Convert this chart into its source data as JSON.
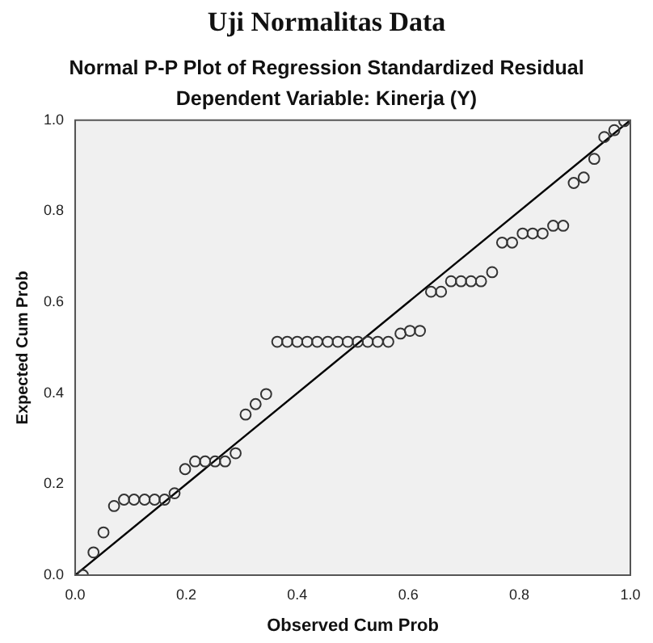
{
  "chart_data": {
    "type": "scatter",
    "title": "Uji Normalitas Data",
    "subtitle": "Normal P-P Plot of Regression Standardized Residual",
    "annotations": [
      "Dependent Variable: Kinerja (Y)"
    ],
    "xlabel": "Observed Cum Prob",
    "ylabel": "Expected Cum Prob",
    "xlim": [
      0,
      1
    ],
    "ylim": [
      0,
      1
    ],
    "xticks": [
      {
        "value": 0,
        "label": "0.0"
      },
      {
        "value": 0.2,
        "label": "0.2"
      },
      {
        "value": 0.4,
        "label": "0.4"
      },
      {
        "value": 0.6,
        "label": "0.6"
      },
      {
        "value": 0.8,
        "label": "0.8"
      },
      {
        "value": 1,
        "label": "1.0"
      }
    ],
    "yticks": [
      {
        "value": 0,
        "label": "0.0"
      },
      {
        "value": 0.2,
        "label": "0.2"
      },
      {
        "value": 0.4,
        "label": "0.4"
      },
      {
        "value": 0.6,
        "label": "0.6"
      },
      {
        "value": 0.8,
        "label": "0.8"
      },
      {
        "value": 1,
        "label": "1.0"
      }
    ],
    "grid": false,
    "legend": false,
    "series": [
      {
        "marker": "circle",
        "color": "#333333",
        "x": [
          0.014,
          0.033,
          0.051,
          0.07,
          0.088,
          0.106,
          0.125,
          0.143,
          0.161,
          0.179,
          0.198,
          0.216,
          0.234,
          0.252,
          0.27,
          0.289,
          0.307,
          0.325,
          0.344,
          0.364,
          0.382,
          0.4,
          0.418,
          0.436,
          0.455,
          0.473,
          0.491,
          0.509,
          0.527,
          0.545,
          0.564,
          0.586,
          0.603,
          0.621,
          0.641,
          0.659,
          0.677,
          0.695,
          0.713,
          0.731,
          0.751,
          0.769,
          0.787,
          0.806,
          0.824,
          0.842,
          0.861,
          0.879,
          0.898,
          0.916,
          0.935,
          0.953,
          0.971,
          0.989
        ],
        "values": [
          0.0,
          0.05,
          0.094,
          0.152,
          0.166,
          0.166,
          0.166,
          0.166,
          0.166,
          0.18,
          0.233,
          0.25,
          0.25,
          0.25,
          0.25,
          0.268,
          0.353,
          0.376,
          0.398,
          0.513,
          0.513,
          0.513,
          0.513,
          0.513,
          0.513,
          0.513,
          0.513,
          0.513,
          0.513,
          0.513,
          0.513,
          0.531,
          0.537,
          0.537,
          0.623,
          0.623,
          0.646,
          0.646,
          0.646,
          0.646,
          0.666,
          0.731,
          0.731,
          0.751,
          0.751,
          0.751,
          0.768,
          0.768,
          0.862,
          0.874,
          0.915,
          0.963,
          0.978,
          0.998
        ]
      },
      {
        "type": "line",
        "marker": "none",
        "line_style": "solid",
        "color": "#000000",
        "x": [
          0,
          1
        ],
        "values": [
          0,
          1
        ]
      }
    ]
  }
}
